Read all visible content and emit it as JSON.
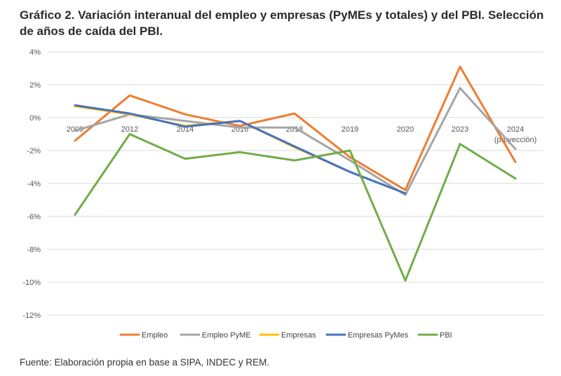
{
  "title": "Gráfico 2. Variación interanual del empleo y empresas (PyMEs y totales) y del PBI. Selección de años de caída del PBI.",
  "source": "Fuente: Elaboración propia en base a SIPA, INDEC y REM.",
  "chart_data": {
    "type": "line",
    "title": "Gráfico 2. Variación interanual del empleo y empresas (PyMEs y totales) y del PBI. Selección de años de caída del PBI.",
    "xlabel": "",
    "ylabel": "",
    "categories": [
      "2009",
      "2012",
      "2014",
      "2016",
      "2018",
      "2019",
      "2020",
      "2023",
      "2024"
    ],
    "category_note": "(proyección)",
    "ylim": [
      -12,
      4
    ],
    "yticks": [
      4,
      2,
      0,
      -2,
      -4,
      -6,
      -8,
      -10,
      -12
    ],
    "ytick_labels": [
      "4%",
      "2%",
      "0%",
      "-2%",
      "-4%",
      "-6%",
      "-8%",
      "-10%",
      "-12%"
    ],
    "grid": true,
    "legend_position": "bottom",
    "series": [
      {
        "name": "Empleo",
        "color": "#ED7D31",
        "values": [
          -1.4,
          1.35,
          0.2,
          -0.5,
          0.25,
          -2.4,
          -4.4,
          3.1,
          -2.7
        ]
      },
      {
        "name": "Empleo PyME",
        "color": "#A5A5A5",
        "values": [
          -0.8,
          0.2,
          -0.2,
          -0.6,
          -0.6,
          -2.6,
          -4.7,
          1.8,
          -1.9
        ]
      },
      {
        "name": "Empresas",
        "color": "#FFC000",
        "values": [
          0.7,
          0.2,
          -0.5,
          -0.2,
          -1.8,
          -3.3,
          -4.6,
          null,
          null
        ]
      },
      {
        "name": "Empresas PyMes",
        "color": "#4472C4",
        "values": [
          0.75,
          0.25,
          -0.55,
          -0.2,
          -1.75,
          -3.3,
          -4.6,
          null,
          null
        ]
      },
      {
        "name": "PBI",
        "color": "#70AD47",
        "values": [
          -5.9,
          -1.0,
          -2.5,
          -2.1,
          -2.6,
          -2.0,
          -9.9,
          -1.6,
          -3.7
        ]
      }
    ]
  }
}
